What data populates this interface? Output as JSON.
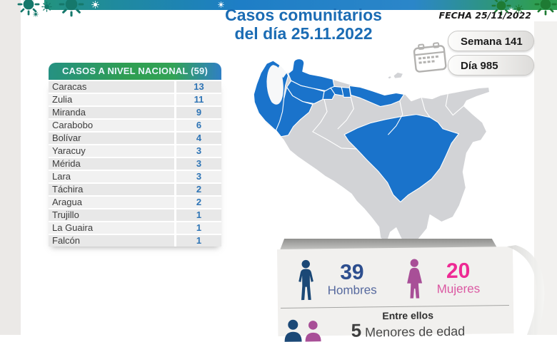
{
  "page": {
    "title_line1": "Casos comunitarios",
    "title_line2": "del día 25.11.2022",
    "fecha_label": "FECHA 25/11/2022",
    "semana_label": "Semana 141",
    "dia_label": "Día 985"
  },
  "table": {
    "header": "CASOS A NIVEL NACIONAL  (59)",
    "total": 59,
    "rows": [
      {
        "state": "Caracas",
        "cases": "13"
      },
      {
        "state": "Zulia",
        "cases": "11"
      },
      {
        "state": "Miranda",
        "cases": "9"
      },
      {
        "state": "Carabobo",
        "cases": "6"
      },
      {
        "state": "Bolívar",
        "cases": "4"
      },
      {
        "state": "Yaracuy",
        "cases": "3"
      },
      {
        "state": "Mérida",
        "cases": "3"
      },
      {
        "state": "Lara",
        "cases": "3"
      },
      {
        "state": "Táchira",
        "cases": "2"
      },
      {
        "state": "Aragua",
        "cases": "2"
      },
      {
        "state": "Trujillo",
        "cases": "1"
      },
      {
        "state": "La Guaira",
        "cases": "1"
      },
      {
        "state": "Falcón",
        "cases": "1"
      }
    ]
  },
  "map": {
    "country": "Venezuela",
    "highlight_color": "#1a73cb",
    "base_color": "#d2d3d6",
    "highlighted_states": [
      "Caracas",
      "Zulia",
      "Miranda",
      "Carabobo",
      "Bolívar",
      "Yaracuy",
      "Mérida",
      "Lara",
      "Táchira",
      "Aragua",
      "Trujillo",
      "La Guaira",
      "Falcón"
    ]
  },
  "stats": {
    "men": {
      "value": "39",
      "label": "Hombres"
    },
    "women": {
      "value": "20",
      "label": "Mujeres"
    },
    "minors": {
      "intro": "Entre ellos",
      "value": "5",
      "label": "Menores de edad"
    }
  },
  "icons": {
    "calendar": "calendar-icon",
    "male": "male-figure-icon",
    "female": "female-figure-icon",
    "minors": "children-icons",
    "virus": "virus-icon"
  },
  "colors": {
    "title_blue": "#1b6cb4",
    "table_number_blue": "#2e74b5",
    "map_highlight": "#1a73cb",
    "map_base": "#d2d3d6",
    "male_icon": "#1b4876",
    "male_number": "#2d4e8e",
    "male_label": "#56699e",
    "female_icon": "#a84f97",
    "female_number": "#ee2a94",
    "female_label": "#db58a2",
    "splat_teal": "#15786b",
    "splat_green": "#1e7b33"
  }
}
